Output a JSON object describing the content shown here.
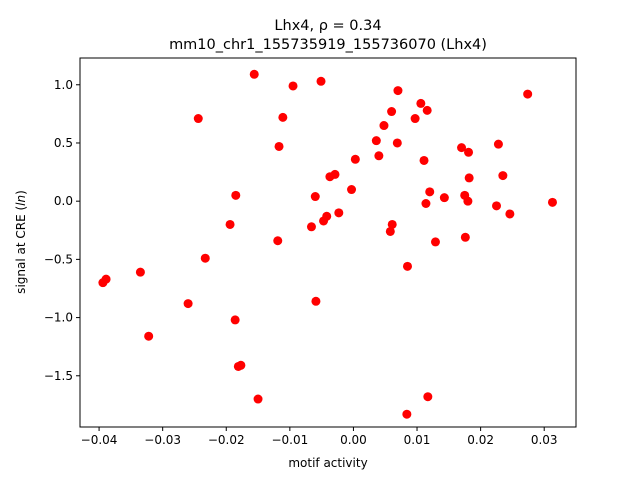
{
  "chart_data": {
    "type": "scatter",
    "title_line1": "Lhx4, ρ = 0.34",
    "title_line2": "mm10_chr1_155735919_155736070 (Lhx4)",
    "xlabel": "motif activity",
    "ylabel": "signal at CRE (ln)",
    "xlim": [
      -0.043,
      0.035
    ],
    "ylim": [
      -1.94,
      1.23
    ],
    "xticks": [
      {
        "value": -0.04,
        "label": "−0.04"
      },
      {
        "value": -0.03,
        "label": "−0.03"
      },
      {
        "value": -0.02,
        "label": "−0.02"
      },
      {
        "value": -0.01,
        "label": "−0.01"
      },
      {
        "value": 0.0,
        "label": "0.00"
      },
      {
        "value": 0.01,
        "label": "0.01"
      },
      {
        "value": 0.02,
        "label": "0.02"
      },
      {
        "value": 0.03,
        "label": "0.03"
      }
    ],
    "yticks": [
      {
        "value": 1.0,
        "label": "1.0"
      },
      {
        "value": 0.5,
        "label": "0.5"
      },
      {
        "value": 0.0,
        "label": "0.0"
      },
      {
        "value": -0.5,
        "label": "−0.5"
      },
      {
        "value": -1.0,
        "label": "−1.0"
      },
      {
        "value": -1.5,
        "label": "−1.5"
      }
    ],
    "marker_color": "#ff0000",
    "points": [
      {
        "x": -0.0394,
        "y": -0.7
      },
      {
        "x": -0.0389,
        "y": -0.67
      },
      {
        "x": -0.0335,
        "y": -0.61
      },
      {
        "x": -0.0322,
        "y": -1.16
      },
      {
        "x": -0.026,
        "y": -0.88
      },
      {
        "x": -0.0244,
        "y": 0.71
      },
      {
        "x": -0.0233,
        "y": -0.49
      },
      {
        "x": -0.0194,
        "y": -0.2
      },
      {
        "x": -0.0186,
        "y": -1.02
      },
      {
        "x": -0.0185,
        "y": 0.05
      },
      {
        "x": -0.0181,
        "y": -1.42
      },
      {
        "x": -0.0177,
        "y": -1.41
      },
      {
        "x": -0.0156,
        "y": 1.09
      },
      {
        "x": -0.015,
        "y": -1.7
      },
      {
        "x": -0.0119,
        "y": -0.34
      },
      {
        "x": -0.0117,
        "y": 0.47
      },
      {
        "x": -0.0111,
        "y": 0.72
      },
      {
        "x": -0.0095,
        "y": 0.99
      },
      {
        "x": -0.0066,
        "y": -0.22
      },
      {
        "x": -0.006,
        "y": 0.04
      },
      {
        "x": -0.0059,
        "y": -0.86
      },
      {
        "x": -0.0051,
        "y": 1.03
      },
      {
        "x": -0.0047,
        "y": -0.17
      },
      {
        "x": -0.0042,
        "y": -0.13
      },
      {
        "x": -0.0037,
        "y": 0.21
      },
      {
        "x": -0.0029,
        "y": 0.23
      },
      {
        "x": -0.0023,
        "y": -0.1
      },
      {
        "x": -0.0003,
        "y": 0.1
      },
      {
        "x": 0.0003,
        "y": 0.36
      },
      {
        "x": 0.0036,
        "y": 0.52
      },
      {
        "x": 0.004,
        "y": 0.39
      },
      {
        "x": 0.0048,
        "y": 0.65
      },
      {
        "x": 0.0058,
        "y": -0.26
      },
      {
        "x": 0.006,
        "y": 0.77
      },
      {
        "x": 0.0061,
        "y": -0.2
      },
      {
        "x": 0.0069,
        "y": 0.5
      },
      {
        "x": 0.007,
        "y": 0.95
      },
      {
        "x": 0.0085,
        "y": -0.56
      },
      {
        "x": 0.0084,
        "y": -1.83
      },
      {
        "x": 0.0097,
        "y": 0.71
      },
      {
        "x": 0.0106,
        "y": 0.84
      },
      {
        "x": 0.0111,
        "y": 0.35
      },
      {
        "x": 0.0114,
        "y": -0.02
      },
      {
        "x": 0.0116,
        "y": 0.78
      },
      {
        "x": 0.0117,
        "y": -1.68
      },
      {
        "x": 0.012,
        "y": 0.08
      },
      {
        "x": 0.0129,
        "y": -0.35
      },
      {
        "x": 0.0143,
        "y": 0.03
      },
      {
        "x": 0.017,
        "y": 0.46
      },
      {
        "x": 0.0175,
        "y": 0.05
      },
      {
        "x": 0.0176,
        "y": -0.31
      },
      {
        "x": 0.018,
        "y": 0.0
      },
      {
        "x": 0.0181,
        "y": 0.42
      },
      {
        "x": 0.0182,
        "y": 0.2
      },
      {
        "x": 0.0225,
        "y": -0.04
      },
      {
        "x": 0.0228,
        "y": 0.49
      },
      {
        "x": 0.0235,
        "y": 0.22
      },
      {
        "x": 0.0246,
        "y": -0.11
      },
      {
        "x": 0.0274,
        "y": 0.92
      },
      {
        "x": 0.0313,
        "y": -0.01
      }
    ]
  }
}
